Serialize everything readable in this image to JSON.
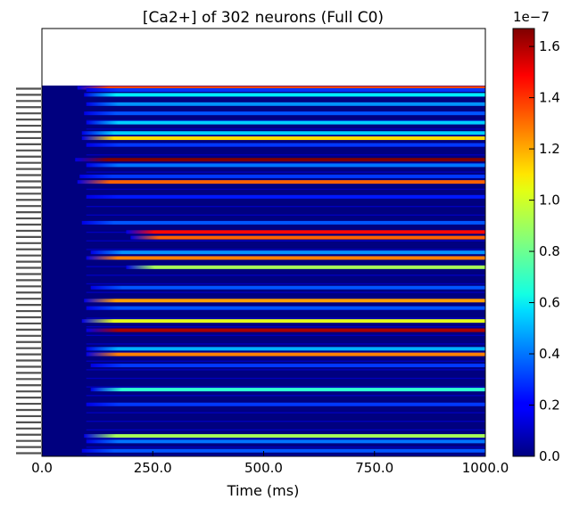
{
  "chart_data": {
    "type": "heatmap",
    "title": "[Ca2+] of 302 neurons (Full C0)",
    "xlabel": "Time (ms)",
    "ylabel": "",
    "xlim": [
      0,
      1000
    ],
    "x_ticks": [
      "0.0",
      "250.0",
      "500.0",
      "750.0",
      "1000.0"
    ],
    "rows": 302,
    "colormap": "jet",
    "colorbar": {
      "min": 0.0,
      "max": 1.67,
      "ticks": [
        "0.0",
        "0.2",
        "0.4",
        "0.6",
        "0.8",
        "1.0",
        "1.2",
        "1.4",
        "1.6"
      ],
      "exponent_label": "1e−7"
    },
    "active_bands": [
      {
        "row_frac": 0.006,
        "onset_ms": 80,
        "level": 1.35
      },
      {
        "row_frac": 0.012,
        "onset_ms": 100,
        "level": 0.3
      },
      {
        "row_frac": 0.025,
        "onset_ms": 95,
        "level": 0.6
      },
      {
        "row_frac": 0.05,
        "onset_ms": 100,
        "level": 0.45
      },
      {
        "row_frac": 0.075,
        "onset_ms": 95,
        "level": 0.35
      },
      {
        "row_frac": 0.1,
        "onset_ms": 100,
        "level": 0.55
      },
      {
        "row_frac": 0.128,
        "onset_ms": 90,
        "level": 0.55
      },
      {
        "row_frac": 0.142,
        "onset_ms": 90,
        "level": 1.1
      },
      {
        "row_frac": 0.16,
        "onset_ms": 100,
        "level": 0.3
      },
      {
        "row_frac": 0.2,
        "onset_ms": 75,
        "level": 1.67
      },
      {
        "row_frac": 0.215,
        "onset_ms": 100,
        "level": 0.4
      },
      {
        "row_frac": 0.245,
        "onset_ms": 85,
        "level": 0.3
      },
      {
        "row_frac": 0.26,
        "onset_ms": 80,
        "level": 1.3
      },
      {
        "row_frac": 0.3,
        "onset_ms": 100,
        "level": 0.25
      },
      {
        "row_frac": 0.37,
        "onset_ms": 90,
        "level": 0.35
      },
      {
        "row_frac": 0.395,
        "onset_ms": 190,
        "level": 1.45
      },
      {
        "row_frac": 0.41,
        "onset_ms": 200,
        "level": 1.3
      },
      {
        "row_frac": 0.45,
        "onset_ms": 110,
        "level": 0.45
      },
      {
        "row_frac": 0.465,
        "onset_ms": 100,
        "level": 1.25
      },
      {
        "row_frac": 0.49,
        "onset_ms": 190,
        "level": 0.9
      },
      {
        "row_frac": 0.545,
        "onset_ms": 110,
        "level": 0.35
      },
      {
        "row_frac": 0.58,
        "onset_ms": 95,
        "level": 1.2
      },
      {
        "row_frac": 0.6,
        "onset_ms": 100,
        "level": 0.35
      },
      {
        "row_frac": 0.635,
        "onset_ms": 90,
        "level": 1.0
      },
      {
        "row_frac": 0.66,
        "onset_ms": 100,
        "level": 1.6
      },
      {
        "row_frac": 0.71,
        "onset_ms": 100,
        "level": 0.5
      },
      {
        "row_frac": 0.725,
        "onset_ms": 100,
        "level": 1.25
      },
      {
        "row_frac": 0.755,
        "onset_ms": 110,
        "level": 0.3
      },
      {
        "row_frac": 0.82,
        "onset_ms": 110,
        "level": 0.7
      },
      {
        "row_frac": 0.86,
        "onset_ms": 100,
        "level": 0.3
      },
      {
        "row_frac": 0.945,
        "onset_ms": 95,
        "level": 0.9
      },
      {
        "row_frac": 0.96,
        "onset_ms": 100,
        "level": 0.4
      },
      {
        "row_frac": 0.985,
        "onset_ms": 90,
        "level": 0.35
      }
    ]
  }
}
